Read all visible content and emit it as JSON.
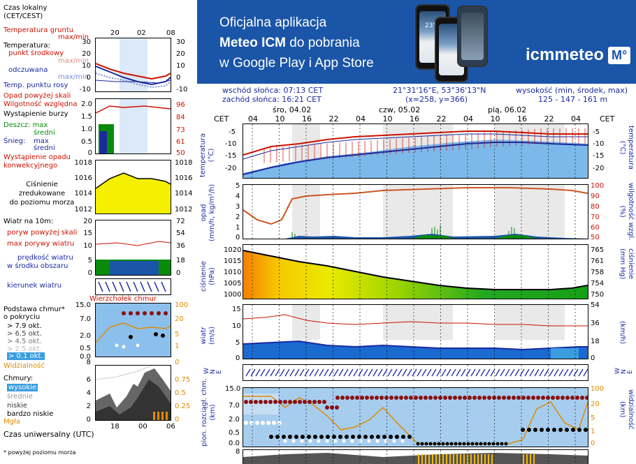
{
  "legend": {
    "time_label": "Czas lokalny\n(CET/CEST)",
    "time_ticks": [
      "20",
      "02",
      "08"
    ],
    "temp_soil": "Temperatura gruntu",
    "temp_soil_sub": "max/min",
    "temp_header": "Temperatura:",
    "temp_mid": "punkt środkowy",
    "temp_mid_sub": "max/min",
    "temp_feel": "odczuwana",
    "temp_feel_sub": "max/min",
    "temp_dew": "Temp. punktu rosy",
    "temp_ticks_left": [
      "30",
      "20",
      "10",
      "0",
      "-10"
    ],
    "temp_ticks_right": [
      "30",
      "20",
      "10",
      "0",
      "-10"
    ],
    "precip_title": "Opad powyżej skali",
    "humidity": "Wilgotność względna",
    "storm": "Wystąpienie burzy",
    "rain": "Deszcz: max",
    "rain_mid": "średni",
    "snow": "Śnieg:",
    "snow_max": "max",
    "snow_mid": "średni",
    "precip_occ": "Wystąpienie opadu",
    "precip_occ2": "konwekcyjnego",
    "precip_ticks_left": [
      "2.0",
      "1.5",
      "1.0",
      "0.5",
      "0"
    ],
    "precip_ticks_right": [
      "96",
      "84",
      "73",
      "61",
      "50"
    ],
    "pressure_label": "Ciśnienie\nzredukowane\ndo poziomu morza",
    "pressure_ticks_left": [
      "1018",
      "1016",
      "1014",
      "1012"
    ],
    "pressure_ticks_right": [
      "1018",
      "1016",
      "1014",
      "1012"
    ],
    "wind_title": "Wiatr na 10m:",
    "gust_above": "poryw powyżej skali",
    "gust_max": "max porywy wiatru",
    "wind_speed": "prędkość wiatru",
    "wind_speed2": "w środku obszaru",
    "wind_ticks_left": [
      "20",
      "15",
      "10",
      "5",
      "0"
    ],
    "wind_ticks_right": [
      "72",
      "54",
      "36",
      "18",
      "0"
    ],
    "wind_dir": "kierunek wiatru",
    "cloud_top": "Wierzchołek chmur",
    "cloud_base": "Podstawa chmur*",
    "cloud_base2": "o pokryciu",
    "okt": [
      "> 7.9 okt.",
      "> 6.5 okt.",
      "> 4.5 okt.",
      "> 2.5 okt.",
      "> 0.1 okt."
    ],
    "cloud_ticks_left": [
      "15.0",
      "7.0",
      "2.0",
      "0.5",
      "0.0"
    ],
    "cloud_ticks_right": [
      "100",
      "20",
      "5",
      "1",
      "0"
    ],
    "visibility": "Widzialność",
    "clouds_header": "Chmury:",
    "cl_high": "wysokie",
    "cl_mid": "średnie",
    "cl_low": "niskie",
    "cl_vlow": "bardzo niskie",
    "fog": "Mgła",
    "cl_ticks_left": [
      "8",
      "6",
      "4",
      "2",
      "0"
    ],
    "cl_ticks_right": [
      "1",
      "0.75",
      "0.5",
      "0.25",
      "0"
    ],
    "utc_label": "Czas uniwersalny (UTC)",
    "utc_ticks": [
      "18",
      "00",
      "06"
    ],
    "footnote": "* powyżej poziomu morza"
  },
  "banner": {
    "line1": "Oficjalna aplikacja",
    "line2_bold": "Meteo ICM",
    "line2_rest": " do pobrania",
    "line3": "w Google Play i App Store",
    "logo": "icmmeteo",
    "logo_box": "M°",
    "phone_temp": "23°"
  },
  "info": {
    "sunrise": "wschód słońca: 07:13 CET",
    "sunset": "zachód słońca: 16:21 CET",
    "coords": "21°31'16\"E, 53°36'13\"N",
    "grid": "(x=258, y=366)",
    "altitude_label": "wysokość (min, środek, max)",
    "altitude": "125 - 147 - 161 m"
  },
  "meteogram": {
    "tz": "CET",
    "days": [
      "śro, 04.02",
      "czw, 05.02",
      "pią, 06.02"
    ],
    "hours": [
      "04",
      "10",
      "16",
      "22",
      "04",
      "10",
      "16",
      "22",
      "04",
      "10",
      "16",
      "22",
      "04"
    ],
    "temp": {
      "label": "temperatura\n(°C)",
      "ticks": [
        "-5",
        "-10",
        "-15",
        "-20"
      ]
    },
    "precip": {
      "label": "opad\n(mm/h, kg/m²/h)",
      "ticks_left": [
        "5",
        "4",
        "3",
        "2",
        "1",
        "0"
      ],
      "label_right": "wilgotność wzgl.\n(%)",
      "ticks_right": [
        "100",
        "90",
        "80",
        "70",
        "60",
        "50"
      ]
    },
    "pressure": {
      "label": "ciśnienie\n(hPa)",
      "ticks_left": [
        "1020",
        "1015",
        "1010",
        "1005",
        "1000"
      ],
      "label_right": "ciśnienie\n(mm Hg)",
      "ticks_right": [
        "765",
        "761",
        "758",
        "754",
        "750"
      ]
    },
    "wind": {
      "label": "wiatr\n(m/s)",
      "ticks_left": [
        "15",
        "10",
        "5",
        "0"
      ],
      "label_right": "(km/h)",
      "ticks_right": [
        "54",
        "36",
        "18",
        "0"
      ]
    },
    "winddir": {
      "label": "W\nN\nE"
    },
    "cloud": {
      "label": "pion. rozciągł. chm.\n(km)",
      "ticks_left": [
        "15.0",
        "7.0",
        "2.0",
        "0.5",
        "0.0"
      ],
      "label_right": "widzialność\n(km)",
      "ticks_right": [
        "100",
        "20",
        "5",
        "1",
        "0"
      ]
    },
    "cloud2": {
      "tick": "8"
    }
  },
  "colors": {
    "banner": "#1a55a8",
    "accent_red": "#cc1100",
    "accent_blue": "#1a2aa0",
    "plot_bg": "#a6cdee"
  }
}
